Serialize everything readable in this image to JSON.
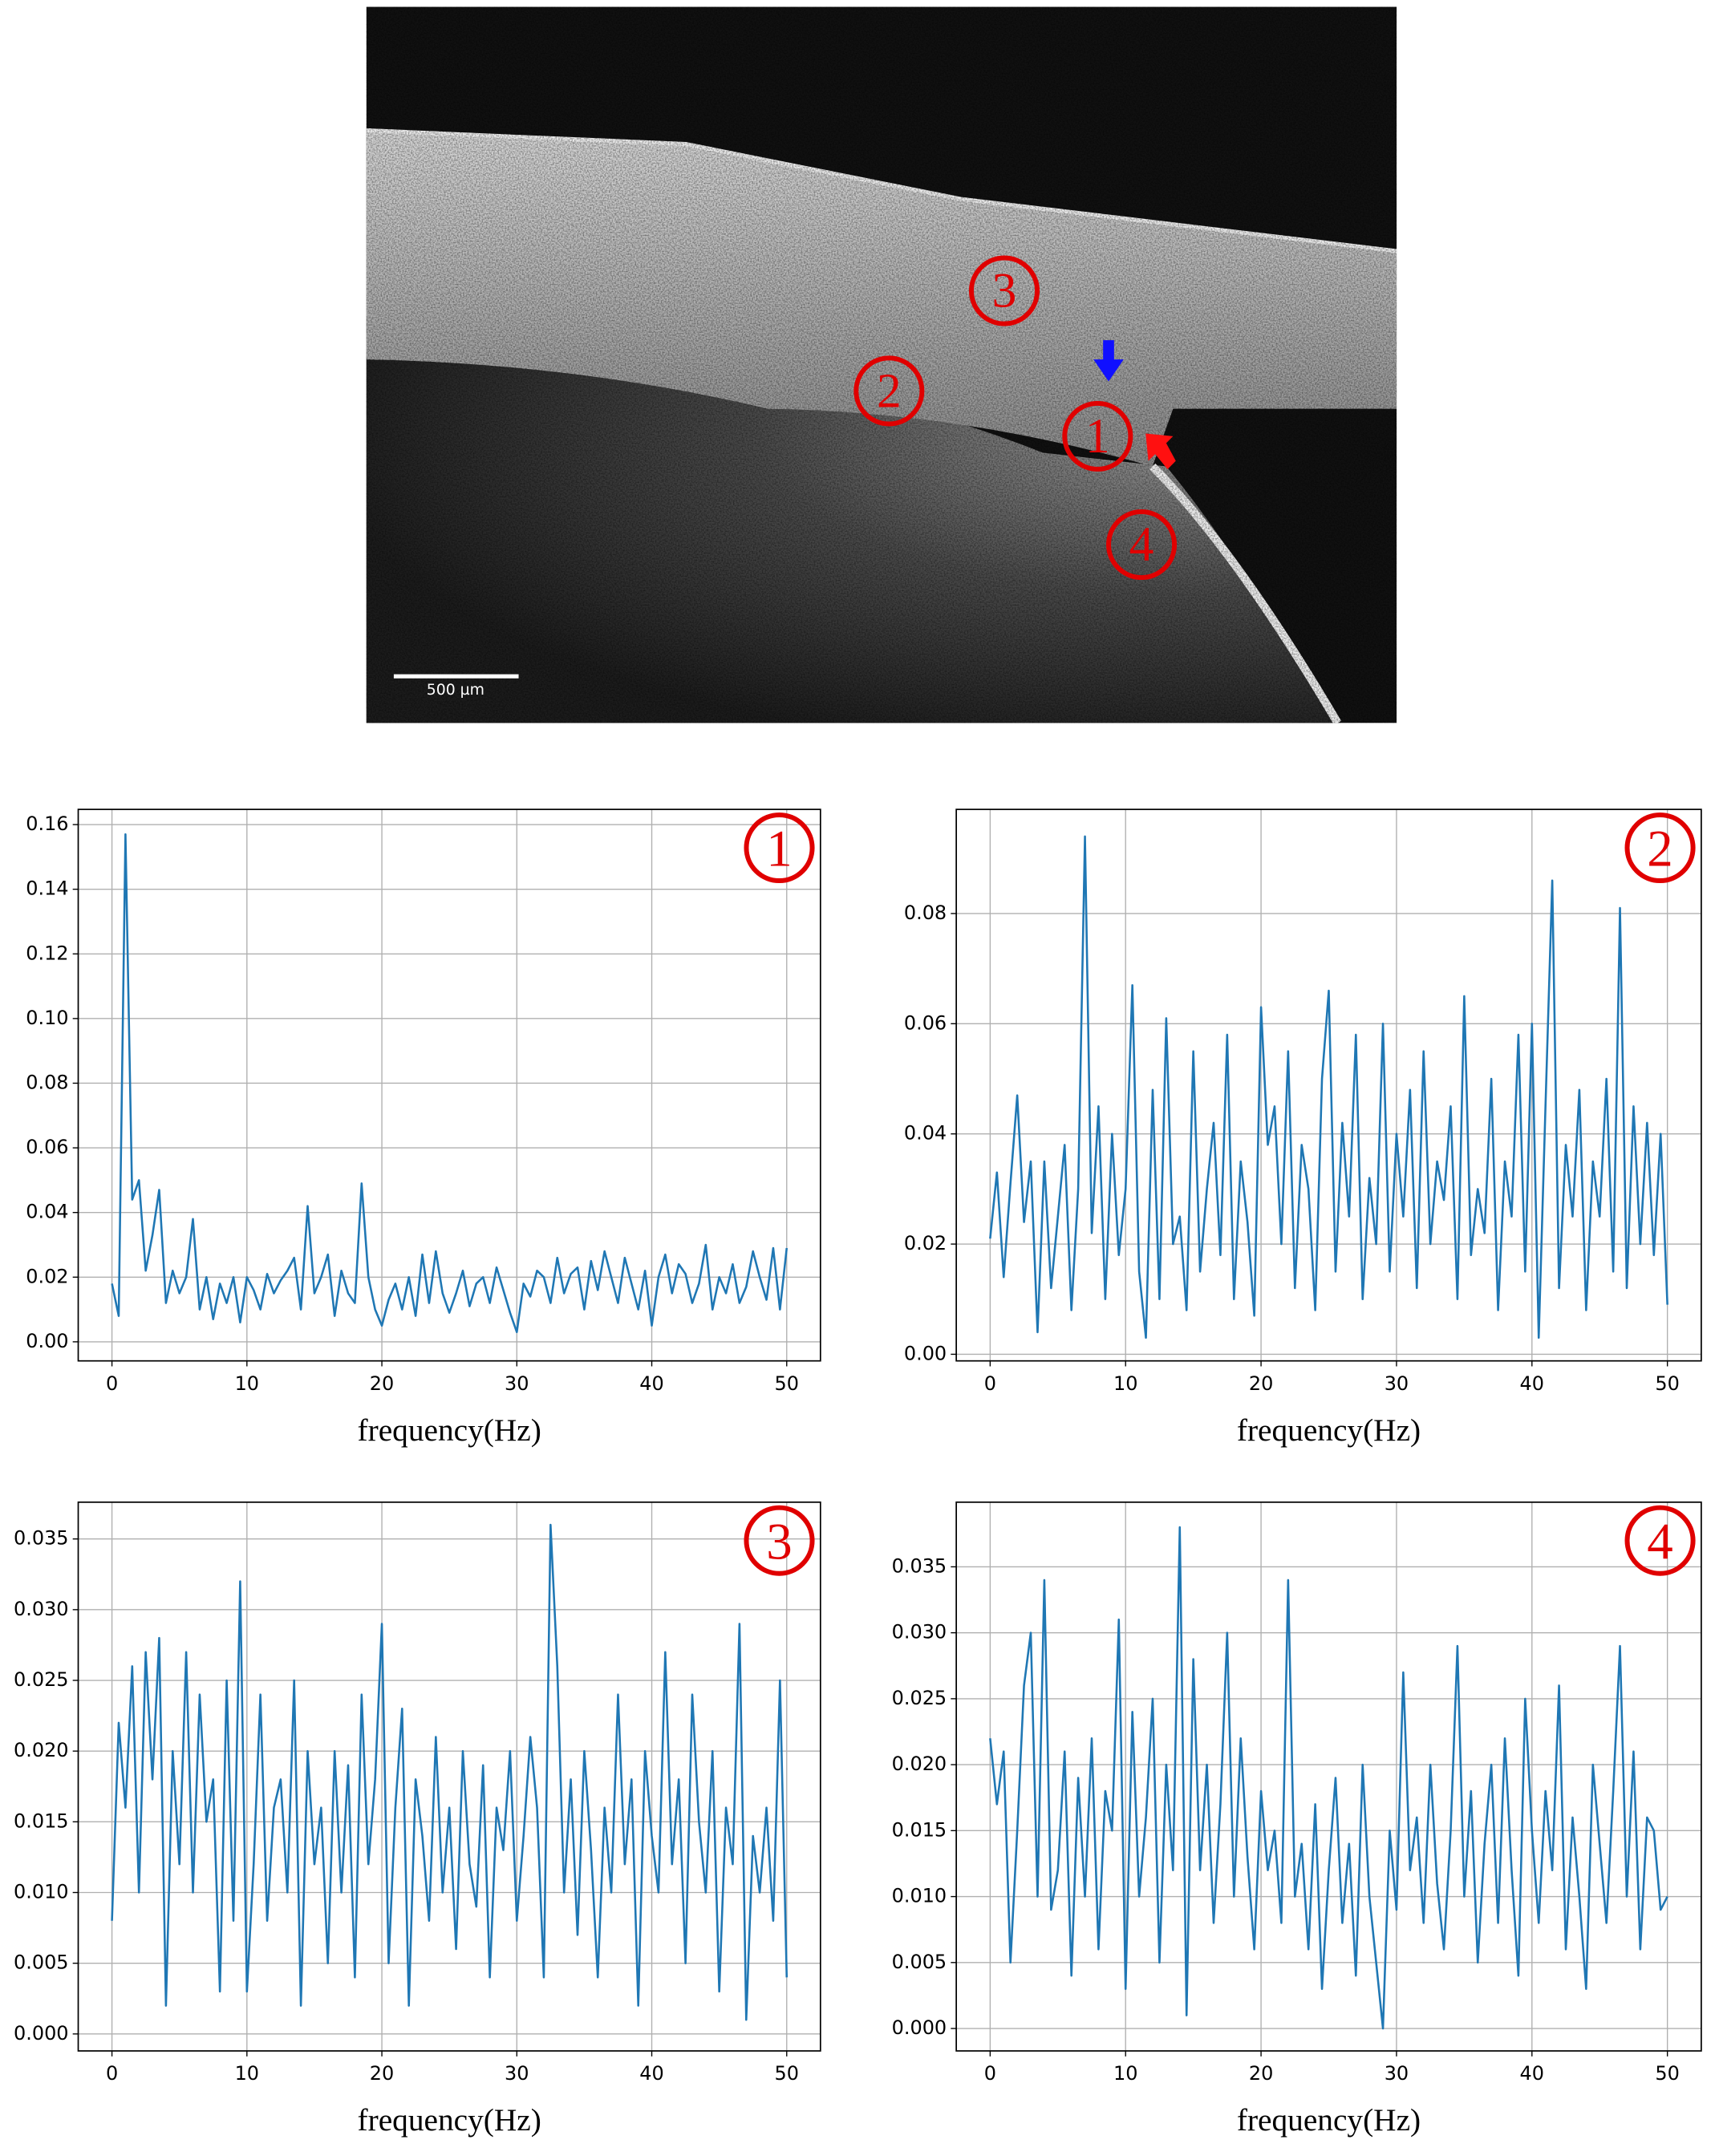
{
  "image": {
    "scale_bar": "500 µm",
    "markers": [
      "1",
      "2",
      "3",
      "4"
    ]
  },
  "chart_data": [
    {
      "type": "line",
      "label": "1",
      "xlabel": "frequency(Hz)",
      "color": "#1f77b4",
      "grid": true,
      "x": [
        0,
        0.5,
        1,
        1.5,
        2,
        2.5,
        3,
        3.5,
        4,
        4.5,
        5,
        5.5,
        6,
        6.5,
        7,
        7.5,
        8,
        8.5,
        9,
        9.5,
        10,
        10.5,
        11,
        11.5,
        12,
        12.5,
        13,
        13.5,
        14,
        14.5,
        15,
        15.5,
        16,
        16.5,
        17,
        17.5,
        18,
        18.5,
        19,
        19.5,
        20,
        20.5,
        21,
        21.5,
        22,
        22.5,
        23,
        23.5,
        24,
        24.5,
        25,
        25.5,
        26,
        26.5,
        27,
        27.5,
        28,
        28.5,
        29,
        29.5,
        30,
        30.5,
        31,
        31.5,
        32,
        32.5,
        33,
        33.5,
        34,
        34.5,
        35,
        35.5,
        36,
        36.5,
        37,
        37.5,
        38,
        38.5,
        39,
        39.5,
        40,
        40.5,
        41,
        41.5,
        42,
        42.5,
        43,
        43.5,
        44,
        44.5,
        45,
        45.5,
        46,
        46.5,
        47,
        47.5,
        48,
        48.5,
        49,
        49.5,
        50
      ],
      "values": [
        0.018,
        0.008,
        0.157,
        0.044,
        0.05,
        0.022,
        0.033,
        0.047,
        0.012,
        0.022,
        0.015,
        0.02,
        0.038,
        0.01,
        0.02,
        0.007,
        0.018,
        0.012,
        0.02,
        0.006,
        0.02,
        0.016,
        0.01,
        0.021,
        0.015,
        0.019,
        0.022,
        0.026,
        0.01,
        0.042,
        0.015,
        0.02,
        0.027,
        0.008,
        0.022,
        0.015,
        0.012,
        0.049,
        0.02,
        0.01,
        0.005,
        0.013,
        0.018,
        0.01,
        0.02,
        0.008,
        0.027,
        0.012,
        0.028,
        0.015,
        0.009,
        0.015,
        0.022,
        0.011,
        0.018,
        0.02,
        0.012,
        0.023,
        0.016,
        0.009,
        0.003,
        0.018,
        0.014,
        0.022,
        0.02,
        0.012,
        0.026,
        0.015,
        0.021,
        0.023,
        0.01,
        0.025,
        0.016,
        0.028,
        0.02,
        0.012,
        0.026,
        0.018,
        0.01,
        0.022,
        0.005,
        0.02,
        0.027,
        0.015,
        0.024,
        0.021,
        0.012,
        0.018,
        0.03,
        0.01,
        0.02,
        0.015,
        0.024,
        0.012,
        0.017,
        0.028,
        0.02,
        0.013,
        0.029,
        0.01,
        0.029
      ],
      "xlim": [
        -2.5,
        52.5
      ],
      "ylim": [
        -0.0059,
        0.1647
      ],
      "xticks": [
        0,
        10,
        20,
        30,
        40,
        50
      ],
      "yticks": [
        {
          "value": 0,
          "label": "0.00"
        },
        {
          "value": 0.02,
          "label": "0.02"
        },
        {
          "value": 0.04,
          "label": "0.04"
        },
        {
          "value": 0.06,
          "label": "0.06"
        },
        {
          "value": 0.08,
          "label": "0.08"
        },
        {
          "value": 0.1,
          "label": "0.10"
        },
        {
          "value": 0.12,
          "label": "0.12"
        },
        {
          "value": 0.14,
          "label": "0.14"
        },
        {
          "value": 0.16,
          "label": "0.16"
        }
      ]
    },
    {
      "type": "line",
      "label": "2",
      "xlabel": "frequency(Hz)",
      "color": "#1f77b4",
      "grid": true,
      "x": [
        0,
        0.5,
        1,
        1.5,
        2,
        2.5,
        3,
        3.5,
        4,
        4.5,
        5,
        5.5,
        6,
        6.5,
        7,
        7.5,
        8,
        8.5,
        9,
        9.5,
        10,
        10.5,
        11,
        11.5,
        12,
        12.5,
        13,
        13.5,
        14,
        14.5,
        15,
        15.5,
        16,
        16.5,
        17,
        17.5,
        18,
        18.5,
        19,
        19.5,
        20,
        20.5,
        21,
        21.5,
        22,
        22.5,
        23,
        23.5,
        24,
        24.5,
        25,
        25.5,
        26,
        26.5,
        27,
        27.5,
        28,
        28.5,
        29,
        29.5,
        30,
        30.5,
        31,
        31.5,
        32,
        32.5,
        33,
        33.5,
        34,
        34.5,
        35,
        35.5,
        36,
        36.5,
        37,
        37.5,
        38,
        38.5,
        39,
        39.5,
        40,
        40.5,
        41,
        41.5,
        42,
        42.5,
        43,
        43.5,
        44,
        44.5,
        45,
        45.5,
        46,
        46.5,
        47,
        47.5,
        48,
        48.5,
        49,
        49.5,
        50
      ],
      "values": [
        0.021,
        0.033,
        0.014,
        0.031,
        0.047,
        0.024,
        0.035,
        0.004,
        0.035,
        0.012,
        0.025,
        0.038,
        0.008,
        0.03,
        0.094,
        0.022,
        0.045,
        0.01,
        0.04,
        0.018,
        0.03,
        0.067,
        0.015,
        0.003,
        0.048,
        0.01,
        0.061,
        0.02,
        0.025,
        0.008,
        0.055,
        0.015,
        0.03,
        0.042,
        0.018,
        0.058,
        0.01,
        0.035,
        0.024,
        0.007,
        0.063,
        0.038,
        0.045,
        0.02,
        0.055,
        0.012,
        0.038,
        0.03,
        0.008,
        0.05,
        0.066,
        0.015,
        0.042,
        0.025,
        0.058,
        0.01,
        0.032,
        0.02,
        0.06,
        0.015,
        0.04,
        0.025,
        0.048,
        0.012,
        0.055,
        0.02,
        0.035,
        0.028,
        0.045,
        0.01,
        0.065,
        0.018,
        0.03,
        0.022,
        0.05,
        0.008,
        0.035,
        0.025,
        0.058,
        0.015,
        0.06,
        0.003,
        0.045,
        0.086,
        0.012,
        0.038,
        0.025,
        0.048,
        0.008,
        0.035,
        0.025,
        0.05,
        0.015,
        0.081,
        0.012,
        0.045,
        0.02,
        0.042,
        0.018,
        0.04,
        0.009
      ],
      "xlim": [
        -2.5,
        52.5
      ],
      "ylim": [
        -0.0012,
        0.0989
      ],
      "xticks": [
        0,
        10,
        20,
        30,
        40,
        50
      ],
      "yticks": [
        {
          "value": 0,
          "label": "0.00"
        },
        {
          "value": 0.02,
          "label": "0.02"
        },
        {
          "value": 0.04,
          "label": "0.04"
        },
        {
          "value": 0.06,
          "label": "0.06"
        },
        {
          "value": 0.08,
          "label": "0.08"
        }
      ]
    },
    {
      "type": "line",
      "label": "3",
      "xlabel": "frequency(Hz)",
      "color": "#1f77b4",
      "grid": true,
      "x": [
        0,
        0.5,
        1,
        1.5,
        2,
        2.5,
        3,
        3.5,
        4,
        4.5,
        5,
        5.5,
        6,
        6.5,
        7,
        7.5,
        8,
        8.5,
        9,
        9.5,
        10,
        10.5,
        11,
        11.5,
        12,
        12.5,
        13,
        13.5,
        14,
        14.5,
        15,
        15.5,
        16,
        16.5,
        17,
        17.5,
        18,
        18.5,
        19,
        19.5,
        20,
        20.5,
        21,
        21.5,
        22,
        22.5,
        23,
        23.5,
        24,
        24.5,
        25,
        25.5,
        26,
        26.5,
        27,
        27.5,
        28,
        28.5,
        29,
        29.5,
        30,
        30.5,
        31,
        31.5,
        32,
        32.5,
        33,
        33.5,
        34,
        34.5,
        35,
        35.5,
        36,
        36.5,
        37,
        37.5,
        38,
        38.5,
        39,
        39.5,
        40,
        40.5,
        41,
        41.5,
        42,
        42.5,
        43,
        43.5,
        44,
        44.5,
        45,
        45.5,
        46,
        46.5,
        47,
        47.5,
        48,
        48.5,
        49,
        49.5,
        50
      ],
      "values": [
        0.008,
        0.022,
        0.016,
        0.026,
        0.01,
        0.027,
        0.018,
        0.028,
        0.002,
        0.02,
        0.012,
        0.027,
        0.01,
        0.024,
        0.015,
        0.018,
        0.003,
        0.025,
        0.008,
        0.032,
        0.003,
        0.012,
        0.024,
        0.008,
        0.016,
        0.018,
        0.01,
        0.025,
        0.002,
        0.02,
        0.012,
        0.016,
        0.005,
        0.02,
        0.01,
        0.019,
        0.004,
        0.024,
        0.012,
        0.018,
        0.029,
        0.005,
        0.016,
        0.023,
        0.002,
        0.018,
        0.014,
        0.008,
        0.021,
        0.01,
        0.016,
        0.006,
        0.02,
        0.012,
        0.009,
        0.019,
        0.004,
        0.016,
        0.013,
        0.02,
        0.008,
        0.014,
        0.021,
        0.016,
        0.004,
        0.036,
        0.026,
        0.01,
        0.018,
        0.007,
        0.02,
        0.013,
        0.004,
        0.016,
        0.01,
        0.024,
        0.012,
        0.018,
        0.002,
        0.02,
        0.014,
        0.01,
        0.027,
        0.012,
        0.018,
        0.005,
        0.024,
        0.015,
        0.01,
        0.02,
        0.003,
        0.016,
        0.012,
        0.029,
        0.001,
        0.014,
        0.01,
        0.016,
        0.008,
        0.025,
        0.004
      ],
      "xlim": [
        -2.5,
        52.5
      ],
      "ylim": [
        -0.0012,
        0.0376
      ],
      "xticks": [
        0,
        10,
        20,
        30,
        40,
        50
      ],
      "yticks": [
        {
          "value": 0,
          "label": "0.000"
        },
        {
          "value": 0.005,
          "label": "0.005"
        },
        {
          "value": 0.01,
          "label": "0.010"
        },
        {
          "value": 0.015,
          "label": "0.015"
        },
        {
          "value": 0.02,
          "label": "0.020"
        },
        {
          "value": 0.025,
          "label": "0.025"
        },
        {
          "value": 0.03,
          "label": "0.030"
        },
        {
          "value": 0.035,
          "label": "0.035"
        }
      ]
    },
    {
      "type": "line",
      "label": "4",
      "xlabel": "frequency(Hz)",
      "color": "#1f77b4",
      "grid": true,
      "x": [
        0,
        0.5,
        1,
        1.5,
        2,
        2.5,
        3,
        3.5,
        4,
        4.5,
        5,
        5.5,
        6,
        6.5,
        7,
        7.5,
        8,
        8.5,
        9,
        9.5,
        10,
        10.5,
        11,
        11.5,
        12,
        12.5,
        13,
        13.5,
        14,
        14.5,
        15,
        15.5,
        16,
        16.5,
        17,
        17.5,
        18,
        18.5,
        19,
        19.5,
        20,
        20.5,
        21,
        21.5,
        22,
        22.5,
        23,
        23.5,
        24,
        24.5,
        25,
        25.5,
        26,
        26.5,
        27,
        27.5,
        28,
        28.5,
        29,
        29.5,
        30,
        30.5,
        31,
        31.5,
        32,
        32.5,
        33,
        33.5,
        34,
        34.5,
        35,
        35.5,
        36,
        36.5,
        37,
        37.5,
        38,
        38.5,
        39,
        39.5,
        40,
        40.5,
        41,
        41.5,
        42,
        42.5,
        43,
        43.5,
        44,
        44.5,
        45,
        45.5,
        46,
        46.5,
        47,
        47.5,
        48,
        48.5,
        49,
        49.5,
        50
      ],
      "values": [
        0.022,
        0.017,
        0.021,
        0.005,
        0.015,
        0.026,
        0.03,
        0.01,
        0.034,
        0.009,
        0.012,
        0.021,
        0.004,
        0.019,
        0.01,
        0.022,
        0.006,
        0.018,
        0.015,
        0.031,
        0.003,
        0.024,
        0.01,
        0.016,
        0.025,
        0.005,
        0.02,
        0.012,
        0.038,
        0.001,
        0.028,
        0.012,
        0.02,
        0.008,
        0.017,
        0.03,
        0.01,
        0.022,
        0.013,
        0.006,
        0.018,
        0.012,
        0.015,
        0.008,
        0.034,
        0.01,
        0.014,
        0.006,
        0.017,
        0.003,
        0.012,
        0.019,
        0.008,
        0.014,
        0.004,
        0.02,
        0.01,
        0.005,
        0.0,
        0.015,
        0.009,
        0.027,
        0.012,
        0.016,
        0.008,
        0.02,
        0.011,
        0.006,
        0.015,
        0.029,
        0.01,
        0.018,
        0.005,
        0.014,
        0.02,
        0.008,
        0.022,
        0.012,
        0.004,
        0.025,
        0.015,
        0.008,
        0.018,
        0.012,
        0.026,
        0.006,
        0.016,
        0.01,
        0.003,
        0.02,
        0.014,
        0.008,
        0.018,
        0.029,
        0.01,
        0.021,
        0.006,
        0.016,
        0.015,
        0.009,
        0.01
      ],
      "xlim": [
        -2.5,
        52.5
      ],
      "ylim": [
        -0.0017,
        0.0399
      ],
      "xticks": [
        0,
        10,
        20,
        30,
        40,
        50
      ],
      "yticks": [
        {
          "value": 0,
          "label": "0.000"
        },
        {
          "value": 0.005,
          "label": "0.005"
        },
        {
          "value": 0.01,
          "label": "0.010"
        },
        {
          "value": 0.015,
          "label": "0.015"
        },
        {
          "value": 0.02,
          "label": "0.020"
        },
        {
          "value": 0.025,
          "label": "0.025"
        },
        {
          "value": 0.03,
          "label": "0.030"
        },
        {
          "value": 0.035,
          "label": "0.035"
        }
      ]
    }
  ]
}
